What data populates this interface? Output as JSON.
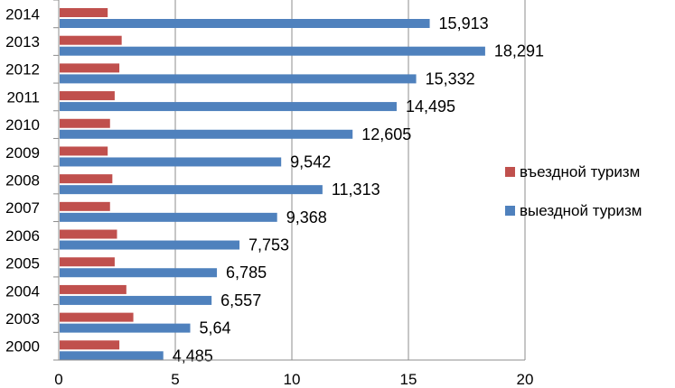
{
  "chart_data": {
    "type": "bar",
    "orientation": "horizontal",
    "categories": [
      "2014",
      "2013",
      "2012",
      "2011",
      "2010",
      "2009",
      "2008",
      "2007",
      "2006",
      "2005",
      "2004",
      "2003",
      "2000"
    ],
    "series": [
      {
        "name": "въездной туризм",
        "color": "#c0504d",
        "values": [
          2.1,
          2.7,
          2.6,
          2.4,
          2.2,
          2.1,
          2.3,
          2.2,
          2.5,
          2.4,
          2.9,
          3.2,
          2.6
        ]
      },
      {
        "name": "выездной туризм",
        "color": "#4f81bd",
        "values": [
          15.913,
          18.291,
          15.332,
          14.495,
          12.605,
          9.542,
          11.313,
          9.368,
          7.753,
          6.785,
          6.557,
          5.64,
          4.485
        ],
        "labels": [
          "15,913",
          "18,291",
          "15,332",
          "14,495",
          "12,605",
          "9,542",
          "11,313",
          "9,368",
          "7,753",
          "6,785",
          "6,557",
          "5,64",
          "4,485"
        ]
      }
    ],
    "xlim": [
      0,
      20
    ],
    "xticks": [
      "0",
      "5",
      "10",
      "15",
      "20"
    ],
    "grid": "vertical",
    "legend_position": "right"
  }
}
